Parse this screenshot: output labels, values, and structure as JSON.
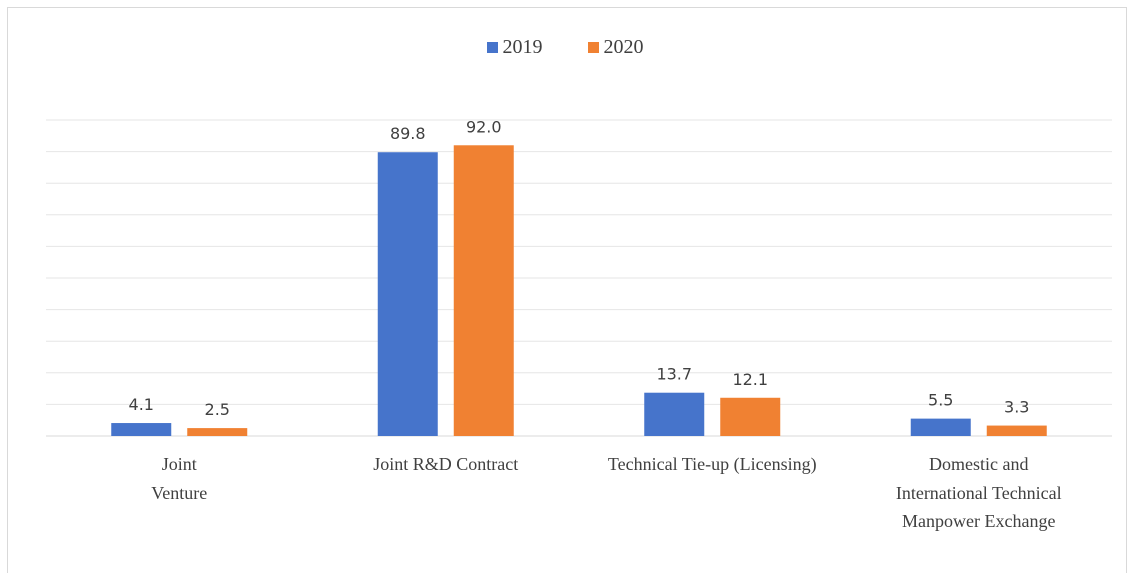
{
  "chart_data": {
    "type": "bar",
    "categories": [
      "Joint\nVenture",
      "Joint R&D Contract",
      "Technical Tie-up (Licensing)",
      "Domestic and\nInternational Technical\nManpower Exchange"
    ],
    "series": [
      {
        "name": "2019",
        "values": [
          4.1,
          89.8,
          13.7,
          5.5
        ],
        "color": "#4674cb",
        "labels": [
          "4.1",
          "89.8",
          "13.7",
          "5.5"
        ]
      },
      {
        "name": "2020",
        "values": [
          2.5,
          92.0,
          12.1,
          3.3
        ],
        "color": "#f08132",
        "labels": [
          "2.5",
          "92.0",
          "12.1",
          "3.3"
        ]
      }
    ],
    "ylim": [
      0,
      100
    ],
    "grid": true,
    "legend_position": "top-center",
    "title": "",
    "xlabel": "",
    "ylabel": ""
  }
}
